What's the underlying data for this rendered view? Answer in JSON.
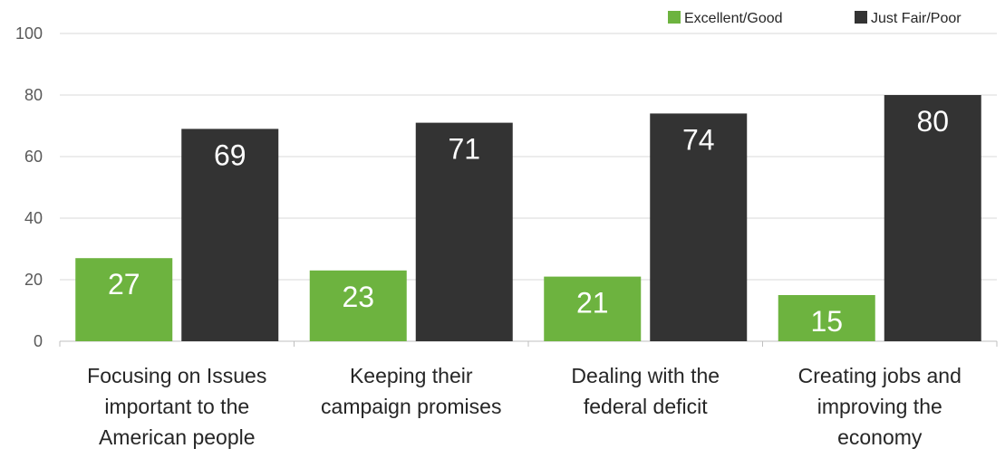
{
  "chart_data": {
    "type": "bar",
    "categories": [
      [
        "Focusing on Issues",
        "important to the",
        "American people"
      ],
      [
        "Keeping their",
        "campaign promises"
      ],
      [
        "Dealing with the",
        "federal deficit"
      ],
      [
        "Creating jobs and",
        "improving the",
        "economy"
      ]
    ],
    "series": [
      {
        "name": "Excellent/Good",
        "color": "#6db33f",
        "values": [
          27,
          23,
          21,
          15
        ]
      },
      {
        "name": "Just Fair/Poor",
        "color": "#333333",
        "values": [
          69,
          71,
          74,
          80
        ]
      }
    ],
    "ylim": [
      0,
      100
    ],
    "yticks": [
      0,
      20,
      40,
      60,
      80,
      100
    ],
    "grid": true,
    "legend_position": "top-right",
    "title": "",
    "xlabel": "",
    "ylabel": ""
  }
}
